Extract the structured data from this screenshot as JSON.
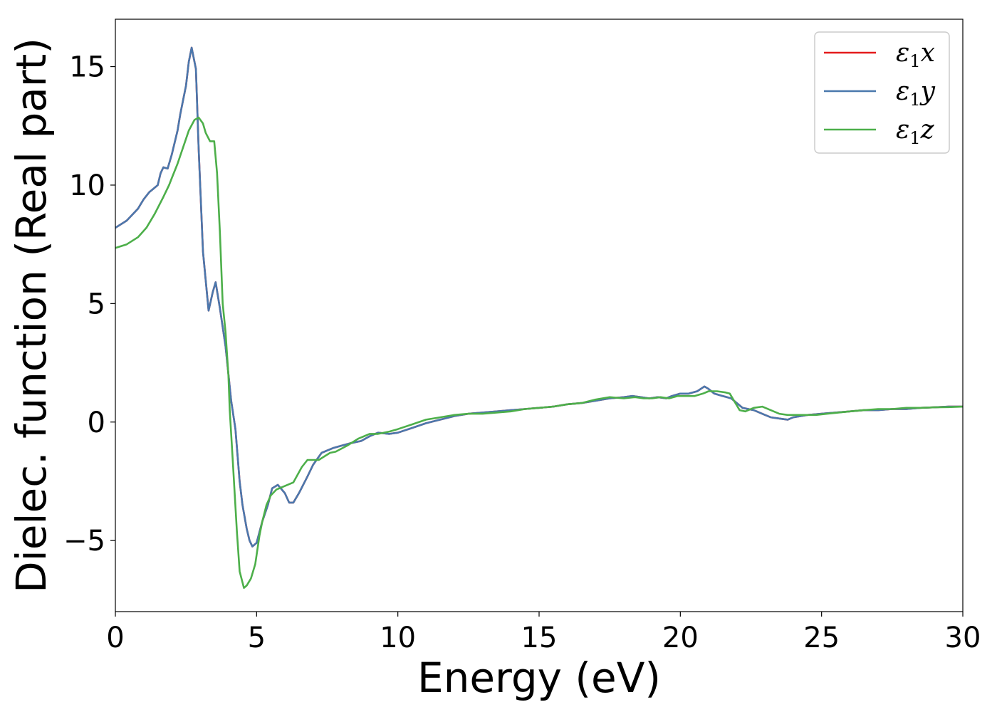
{
  "chart_data": {
    "type": "line",
    "title": "",
    "xlabel": "Energy (eV)",
    "ylabel": "Dielec. function (Real part)",
    "xlim": [
      0,
      30
    ],
    "ylim": [
      -8,
      17
    ],
    "xticks": [
      0,
      5,
      10,
      15,
      20,
      25,
      30
    ],
    "xtick_labels": [
      "0",
      "5",
      "10",
      "15",
      "20",
      "25",
      "30"
    ],
    "yticks": [
      -5,
      0,
      5,
      10,
      15
    ],
    "ytick_labels": [
      "−5",
      "0",
      "5",
      "10",
      "15"
    ],
    "grid": false,
    "legend_position": "top-right",
    "series": [
      {
        "name": "ε1x",
        "name_base": "ε",
        "name_sub": "1",
        "name_tail": "x",
        "color": "#e41a1c",
        "x": [
          0,
          0.4,
          0.8,
          1.0,
          1.2,
          1.3,
          1.5,
          1.6,
          1.7,
          1.85,
          2.0,
          2.1,
          2.2,
          2.3,
          2.5,
          2.6,
          2.7,
          2.85,
          2.95,
          3.1,
          3.3,
          3.45,
          3.55,
          3.7,
          3.9,
          4.1,
          4.25,
          4.4,
          4.5,
          4.65,
          4.75,
          4.85,
          5.0,
          5.2,
          5.4,
          5.55,
          5.75,
          6.0,
          6.15,
          6.3,
          6.5,
          6.8,
          7.0,
          7.3,
          7.7,
          8.0,
          8.3,
          8.7,
          9.0,
          9.3,
          9.7,
          10.0,
          10.5,
          11.0,
          11.5,
          12.0,
          12.5,
          13.0,
          13.5,
          14.0,
          14.5,
          15.0,
          15.5,
          16.0,
          16.5,
          17.0,
          17.5,
          18.0,
          18.3,
          18.6,
          18.9,
          19.2,
          19.5,
          19.7,
          20.0,
          20.3,
          20.6,
          20.85,
          21.0,
          21.2,
          21.5,
          21.8,
          22.0,
          22.2,
          22.6,
          23.0,
          23.2,
          23.5,
          23.8,
          24.0,
          24.5,
          25.0,
          25.5,
          26.0,
          26.5,
          27.0,
          27.5,
          28.0,
          28.5,
          29.0,
          29.5,
          30.0
        ],
        "y": [
          8.2,
          8.5,
          9.0,
          9.4,
          9.7,
          9.8,
          10.0,
          10.5,
          10.75,
          10.7,
          11.3,
          11.8,
          12.3,
          13.0,
          14.2,
          15.2,
          15.8,
          14.9,
          11.5,
          7.2,
          4.7,
          5.5,
          5.9,
          4.8,
          3.2,
          0.9,
          -0.3,
          -2.5,
          -3.5,
          -4.5,
          -5.0,
          -5.25,
          -5.1,
          -4.2,
          -3.5,
          -2.8,
          -2.65,
          -3.0,
          -3.4,
          -3.4,
          -3.0,
          -2.3,
          -1.8,
          -1.3,
          -1.1,
          -1.0,
          -0.9,
          -0.8,
          -0.6,
          -0.45,
          -0.5,
          -0.45,
          -0.25,
          -0.05,
          0.1,
          0.25,
          0.35,
          0.4,
          0.45,
          0.5,
          0.55,
          0.6,
          0.65,
          0.75,
          0.8,
          0.9,
          1.0,
          1.05,
          1.1,
          1.05,
          1.0,
          1.05,
          1.0,
          1.1,
          1.2,
          1.2,
          1.3,
          1.5,
          1.4,
          1.2,
          1.1,
          1.0,
          0.8,
          0.6,
          0.5,
          0.3,
          0.2,
          0.15,
          0.1,
          0.2,
          0.3,
          0.35,
          0.4,
          0.45,
          0.5,
          0.5,
          0.55,
          0.55,
          0.6,
          0.62,
          0.65,
          0.65
        ]
      },
      {
        "name": "ε1y",
        "name_base": "ε",
        "name_sub": "1",
        "name_tail": "y",
        "color": "#4a78ad",
        "x": [
          0,
          0.4,
          0.8,
          1.0,
          1.2,
          1.3,
          1.5,
          1.6,
          1.7,
          1.85,
          2.0,
          2.1,
          2.2,
          2.3,
          2.5,
          2.6,
          2.7,
          2.85,
          2.95,
          3.1,
          3.3,
          3.45,
          3.55,
          3.7,
          3.9,
          4.1,
          4.25,
          4.4,
          4.5,
          4.65,
          4.75,
          4.85,
          5.0,
          5.2,
          5.4,
          5.55,
          5.75,
          6.0,
          6.15,
          6.3,
          6.5,
          6.8,
          7.0,
          7.3,
          7.7,
          8.0,
          8.3,
          8.7,
          9.0,
          9.3,
          9.7,
          10.0,
          10.5,
          11.0,
          11.5,
          12.0,
          12.5,
          13.0,
          13.5,
          14.0,
          14.5,
          15.0,
          15.5,
          16.0,
          16.5,
          17.0,
          17.5,
          18.0,
          18.3,
          18.6,
          18.9,
          19.2,
          19.5,
          19.7,
          20.0,
          20.3,
          20.6,
          20.85,
          21.0,
          21.2,
          21.5,
          21.8,
          22.0,
          22.2,
          22.6,
          23.0,
          23.2,
          23.5,
          23.8,
          24.0,
          24.5,
          25.0,
          25.5,
          26.0,
          26.5,
          27.0,
          27.5,
          28.0,
          28.5,
          29.0,
          29.5,
          30.0
        ],
        "y": [
          8.2,
          8.5,
          9.0,
          9.4,
          9.7,
          9.8,
          10.0,
          10.5,
          10.75,
          10.7,
          11.3,
          11.8,
          12.3,
          13.0,
          14.2,
          15.2,
          15.8,
          14.9,
          11.5,
          7.2,
          4.7,
          5.5,
          5.9,
          4.8,
          3.2,
          0.9,
          -0.3,
          -2.5,
          -3.5,
          -4.5,
          -5.0,
          -5.25,
          -5.1,
          -4.2,
          -3.5,
          -2.8,
          -2.65,
          -3.0,
          -3.4,
          -3.4,
          -3.0,
          -2.3,
          -1.8,
          -1.3,
          -1.1,
          -1.0,
          -0.9,
          -0.8,
          -0.6,
          -0.45,
          -0.5,
          -0.45,
          -0.25,
          -0.05,
          0.1,
          0.25,
          0.35,
          0.4,
          0.45,
          0.5,
          0.55,
          0.6,
          0.65,
          0.75,
          0.8,
          0.9,
          1.0,
          1.05,
          1.1,
          1.05,
          1.0,
          1.05,
          1.0,
          1.1,
          1.2,
          1.2,
          1.3,
          1.5,
          1.4,
          1.2,
          1.1,
          1.0,
          0.8,
          0.6,
          0.5,
          0.3,
          0.2,
          0.15,
          0.1,
          0.2,
          0.3,
          0.35,
          0.4,
          0.45,
          0.5,
          0.5,
          0.55,
          0.55,
          0.6,
          0.62,
          0.65,
          0.65
        ]
      },
      {
        "name": "ε1z",
        "name_base": "ε",
        "name_sub": "1",
        "name_tail": "z",
        "color": "#4daf4a",
        "x": [
          0,
          0.4,
          0.8,
          1.1,
          1.4,
          1.7,
          1.9,
          2.0,
          2.2,
          2.4,
          2.6,
          2.8,
          2.95,
          3.1,
          3.2,
          3.35,
          3.5,
          3.6,
          3.7,
          3.8,
          3.9,
          4.0,
          4.05,
          4.15,
          4.3,
          4.4,
          4.55,
          4.65,
          4.8,
          4.95,
          5.1,
          5.2,
          5.35,
          5.5,
          5.7,
          6.0,
          6.3,
          6.6,
          6.8,
          7.0,
          7.2,
          7.4,
          7.6,
          7.8,
          8.2,
          8.6,
          9.0,
          9.3,
          9.7,
          10.0,
          10.5,
          11.0,
          11.5,
          12.0,
          12.5,
          13.0,
          13.5,
          14.0,
          14.5,
          15.0,
          15.5,
          16.0,
          16.5,
          17.0,
          17.5,
          18.0,
          18.4,
          18.7,
          19.0,
          19.3,
          19.6,
          19.9,
          20.2,
          20.5,
          20.8,
          21.0,
          21.3,
          21.6,
          21.75,
          21.9,
          22.1,
          22.3,
          22.6,
          22.9,
          23.2,
          23.5,
          23.8,
          24.0,
          24.4,
          24.8,
          25.2,
          25.6,
          26.0,
          26.5,
          27.0,
          27.5,
          28.0,
          28.5,
          29.0,
          29.5,
          30.0
        ],
        "y": [
          7.35,
          7.5,
          7.8,
          8.2,
          8.8,
          9.5,
          10.0,
          10.3,
          10.9,
          11.6,
          12.3,
          12.75,
          12.85,
          12.6,
          12.2,
          11.85,
          11.85,
          10.5,
          8.0,
          5.0,
          3.8,
          2.0,
          0.5,
          -1.5,
          -4.6,
          -6.3,
          -7.0,
          -6.9,
          -6.6,
          -6.0,
          -4.8,
          -4.2,
          -3.5,
          -3.1,
          -2.85,
          -2.7,
          -2.55,
          -1.9,
          -1.6,
          -1.6,
          -1.6,
          -1.45,
          -1.3,
          -1.25,
          -1.0,
          -0.7,
          -0.5,
          -0.5,
          -0.4,
          -0.3,
          -0.1,
          0.1,
          0.2,
          0.3,
          0.35,
          0.35,
          0.4,
          0.45,
          0.55,
          0.6,
          0.65,
          0.75,
          0.8,
          0.95,
          1.05,
          1.0,
          1.05,
          1.0,
          1.0,
          1.05,
          1.0,
          1.1,
          1.1,
          1.1,
          1.2,
          1.3,
          1.3,
          1.25,
          1.2,
          0.9,
          0.5,
          0.45,
          0.6,
          0.65,
          0.5,
          0.35,
          0.3,
          0.3,
          0.3,
          0.3,
          0.35,
          0.4,
          0.45,
          0.5,
          0.55,
          0.55,
          0.6,
          0.6,
          0.62,
          0.63,
          0.65
        ]
      }
    ]
  }
}
